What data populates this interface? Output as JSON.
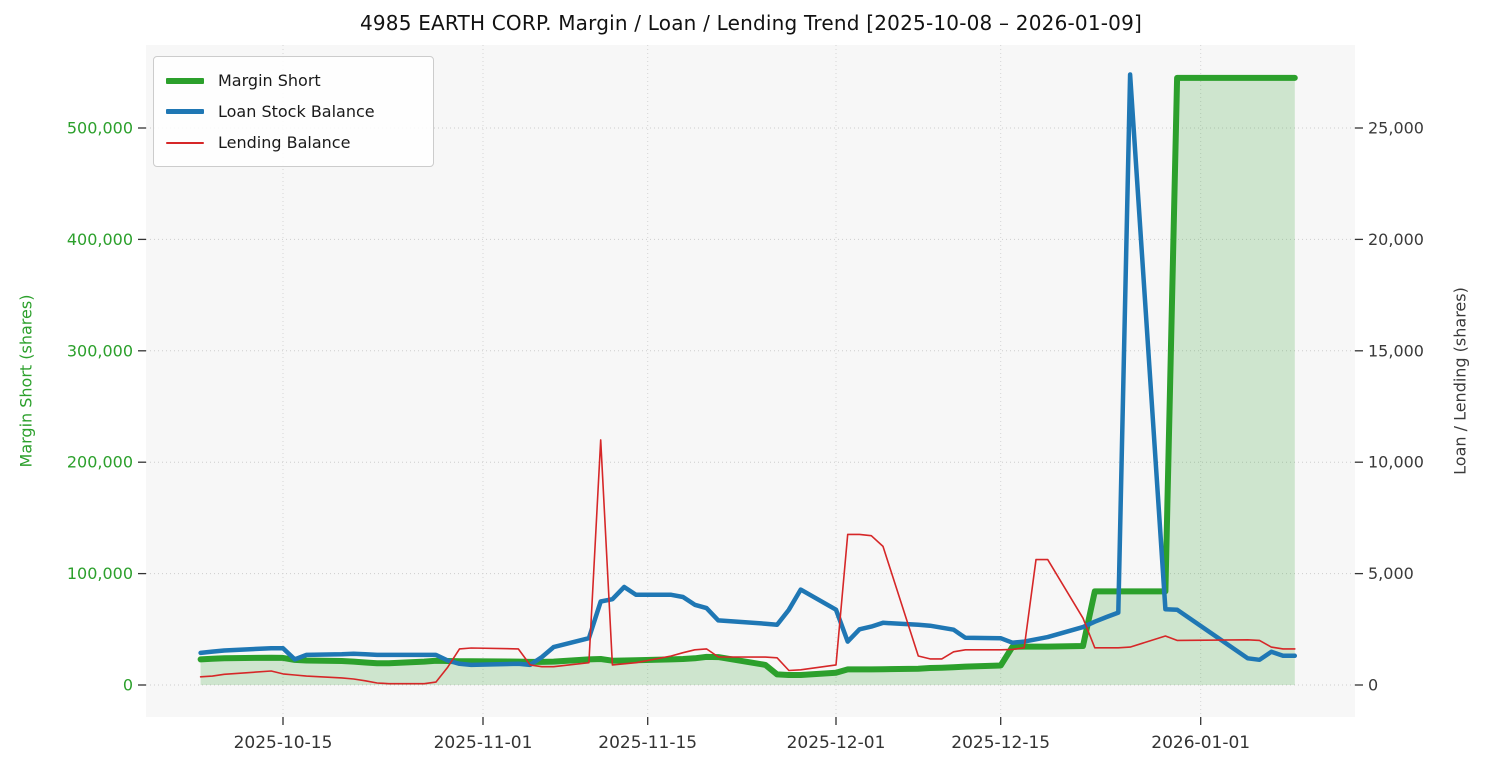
{
  "chart_data": {
    "type": "line",
    "title": "4985 EARTH CORP. Margin / Loan / Lending Trend [2025-10-08 – 2026-01-09]",
    "date_range": [
      "2025-10-08",
      "2026-01-09"
    ],
    "grid": true,
    "legend_position": "upper-left",
    "plot_background": "#f7f7f7",
    "x_dates": [
      "2025-10-08",
      "2025-10-09",
      "2025-10-10",
      "2025-10-14",
      "2025-10-15",
      "2025-10-16",
      "2025-10-17",
      "2025-10-20",
      "2025-10-21",
      "2025-10-22",
      "2025-10-23",
      "2025-10-24",
      "2025-10-27",
      "2025-10-28",
      "2025-10-29",
      "2025-10-30",
      "2025-10-31",
      "2025-11-04",
      "2025-11-05",
      "2025-11-06",
      "2025-11-07",
      "2025-11-10",
      "2025-11-11",
      "2025-11-12",
      "2025-11-13",
      "2025-11-14",
      "2025-11-17",
      "2025-11-18",
      "2025-11-19",
      "2025-11-20",
      "2025-11-21",
      "2025-11-25",
      "2025-11-26",
      "2025-11-27",
      "2025-11-28",
      "2025-12-01",
      "2025-12-02",
      "2025-12-03",
      "2025-12-04",
      "2025-12-05",
      "2025-12-08",
      "2025-12-09",
      "2025-12-10",
      "2025-12-11",
      "2025-12-12",
      "2025-12-15",
      "2025-12-16",
      "2025-12-17",
      "2025-12-18",
      "2025-12-19",
      "2025-12-22",
      "2025-12-23",
      "2025-12-24",
      "2025-12-25",
      "2025-12-26",
      "2025-12-29",
      "2025-12-30",
      "2026-01-05",
      "2026-01-06",
      "2026-01-07",
      "2026-01-08",
      "2026-01-09"
    ],
    "series": [
      {
        "name": "Margin Short",
        "axis": "left",
        "color": "#2ca02c",
        "line_width": 6,
        "fill": true,
        "fill_alpha": 0.2,
        "values": [
          23000,
          23500,
          24000,
          24500,
          24300,
          22500,
          22000,
          21500,
          21000,
          20200,
          19500,
          19600,
          21000,
          21800,
          21500,
          21300,
          21300,
          21000,
          20700,
          20700,
          21000,
          23000,
          23300,
          21800,
          22000,
          22300,
          23000,
          23300,
          24000,
          25200,
          25000,
          18000,
          9500,
          9000,
          9000,
          11000,
          14000,
          14000,
          14000,
          14200,
          14500,
          15300,
          15500,
          16000,
          16500,
          17500,
          34200,
          34500,
          34500,
          34500,
          35000,
          84000,
          84000,
          84000,
          84000,
          84000,
          545000,
          545000,
          545000,
          545000,
          545000,
          545000
        ]
      },
      {
        "name": "Loan Stock Balance",
        "axis": "right",
        "color": "#1f77b4",
        "line_width": 4.5,
        "fill": false,
        "values": [
          1440,
          1500,
          1550,
          1650,
          1650,
          1150,
          1350,
          1380,
          1400,
          1380,
          1350,
          1350,
          1350,
          1350,
          1100,
          950,
          900,
          950,
          900,
          1250,
          1700,
          2100,
          3750,
          3850,
          4400,
          4050,
          4050,
          3950,
          3600,
          3450,
          2900,
          2750,
          2700,
          3380,
          4280,
          3380,
          1950,
          2500,
          2620,
          2790,
          2700,
          2660,
          2570,
          2480,
          2120,
          2100,
          1900,
          1950,
          2050,
          2150,
          2600,
          2840,
          3050,
          3250,
          27400,
          3400,
          3380,
          1200,
          1130,
          1490,
          1310,
          1310
        ]
      },
      {
        "name": "Lending Balance",
        "axis": "right",
        "color": "#d62728",
        "line_width": 1.6,
        "fill": false,
        "values": [
          370,
          400,
          480,
          630,
          500,
          450,
          400,
          320,
          270,
          190,
          90,
          60,
          60,
          130,
          800,
          1620,
          1660,
          1620,
          900,
          820,
          820,
          1000,
          11000,
          900,
          950,
          1000,
          1300,
          1450,
          1580,
          1620,
          1260,
          1250,
          1220,
          650,
          680,
          900,
          6760,
          6760,
          6700,
          6220,
          1300,
          1170,
          1170,
          1490,
          1580,
          1580,
          1600,
          1670,
          5630,
          5630,
          3000,
          1670,
          1670,
          1670,
          1700,
          2200,
          2000,
          2030,
          2000,
          1700,
          1620,
          1620
        ]
      }
    ],
    "left_axis": {
      "label": "Margin Short (shares)",
      "tick_values": [
        0,
        100000,
        200000,
        300000,
        400000,
        500000
      ],
      "tick_labels": [
        "0",
        "100,000",
        "200,000",
        "300,000",
        "400,000",
        "500,000"
      ],
      "color": "#2ca02c",
      "range_top": 575000
    },
    "right_axis": {
      "label": "Loan / Lending (shares)",
      "tick_values": [
        0,
        5000,
        10000,
        15000,
        20000,
        25000
      ],
      "tick_labels": [
        "0",
        "5,000",
        "10,000",
        "15,000",
        "20,000",
        "25,000"
      ],
      "color": "#3a3a3a",
      "range_top": 28750
    },
    "x_axis": {
      "tick_dates": [
        "2025-10-15",
        "2025-11-01",
        "2025-11-15",
        "2025-12-01",
        "2025-12-15",
        "2026-01-01"
      ],
      "tick_labels": [
        "2025-10-15",
        "2025-11-01",
        "2025-11-15",
        "2025-12-01",
        "2025-12-15",
        "2026-01-01"
      ],
      "color": "#333333"
    },
    "legend": {
      "items": [
        "Margin Short",
        "Loan Stock Balance",
        "Lending Balance"
      ]
    }
  }
}
